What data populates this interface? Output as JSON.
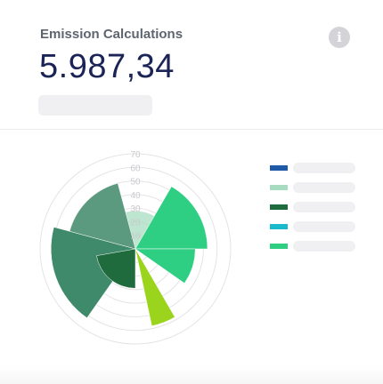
{
  "header": {
    "title": "Emission Calculations",
    "value": "5.987,34",
    "info_icon": "info-icon"
  },
  "colors": {
    "ring": "#e4e4e7",
    "tick_label": "#c9c9cd"
  },
  "legend": {
    "items": [
      {
        "color": "#1f5aa8"
      },
      {
        "color": "#a8dcc0"
      },
      {
        "color": "#1f6b3e"
      },
      {
        "color": "#1ab9cc"
      },
      {
        "color": "#2ecf82"
      }
    ]
  },
  "chart_data": {
    "type": "polar-area",
    "rmax": 70,
    "ticks": [
      10,
      20,
      30,
      40,
      50,
      60,
      70
    ],
    "series": [
      {
        "color": "#a8dcc0",
        "opacity": 0.75,
        "slices": [
          {
            "start": 300,
            "end": 420,
            "r": 28
          }
        ]
      },
      {
        "color": "#3e8a6a",
        "opacity": 1,
        "slices": [
          {
            "start": 215,
            "end": 285,
            "r": 62
          }
        ]
      },
      {
        "color": "#5c9a80",
        "opacity": 1,
        "slices": [
          {
            "start": 285,
            "end": 345,
            "r": 50
          }
        ]
      },
      {
        "color": "#1f6b3e",
        "opacity": 1,
        "slices": [
          {
            "start": 180,
            "end": 260,
            "r": 29
          }
        ]
      },
      {
        "color": "#2ecf82",
        "opacity": 1,
        "slices": [
          {
            "start": 30,
            "end": 90,
            "r": 53
          },
          {
            "start": 90,
            "end": 125,
            "r": 44
          }
        ]
      },
      {
        "color": "#9ad41d",
        "opacity": 1,
        "slices": [
          {
            "start": 150,
            "end": 168,
            "r": 58
          }
        ]
      }
    ]
  }
}
